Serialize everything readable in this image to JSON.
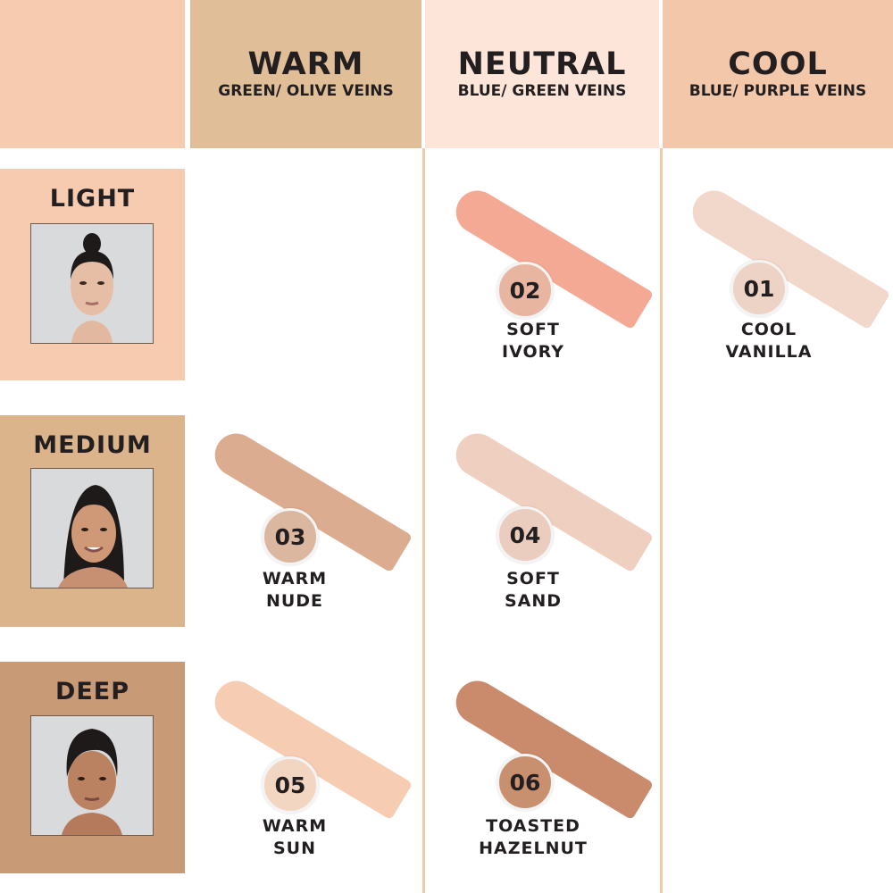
{
  "columns": [
    {
      "title": "WARM",
      "subtitle": "GREEN/ OLIVE VEINS",
      "color": "#e0be98"
    },
    {
      "title": "NEUTRAL",
      "subtitle": "BLUE/ GREEN VEINS",
      "color": "#fde5da"
    },
    {
      "title": "COOL",
      "subtitle": "BLUE/ PURPLE VEINS",
      "color": "#f3c7a9"
    }
  ],
  "corner_color": "#f6cbb0",
  "rows": [
    {
      "label": "LIGHT",
      "color": "#f6cbb0"
    },
    {
      "label": "MEDIUM",
      "color": "#dcb48c"
    },
    {
      "label": "DEEP",
      "color": "#c99a76"
    }
  ],
  "shades": [
    {
      "number": "02",
      "name_line1": "SOFT",
      "name_line2": "IVORY",
      "row": "LIGHT",
      "column": "NEUTRAL",
      "swatch_color": "#f4a994",
      "chip_color": "#e8b5a1"
    },
    {
      "number": "01",
      "name_line1": "COOL",
      "name_line2": "VANILLA",
      "row": "LIGHT",
      "column": "COOL",
      "swatch_color": "#f2d7cb",
      "chip_color": "#ecd3c6"
    },
    {
      "number": "03",
      "name_line1": "WARM",
      "name_line2": "NUDE",
      "row": "MEDIUM",
      "column": "WARM",
      "swatch_color": "#dbac90",
      "chip_color": "#dcb7a0"
    },
    {
      "number": "04",
      "name_line1": "SOFT",
      "name_line2": "SAND",
      "row": "MEDIUM",
      "column": "NEUTRAL",
      "swatch_color": "#efcfbf",
      "chip_color": "#ebcdbf"
    },
    {
      "number": "05",
      "name_line1": "WARM",
      "name_line2": "SUN",
      "row": "DEEP",
      "column": "WARM",
      "swatch_color": "#f6cdb3",
      "chip_color": "#f3d6c2"
    },
    {
      "number": "06",
      "name_line1": "TOASTED",
      "name_line2": "HAZELNUT",
      "row": "DEEP",
      "column": "NEUTRAL",
      "swatch_color": "#c98b6b",
      "chip_color": "#c9906f"
    }
  ]
}
